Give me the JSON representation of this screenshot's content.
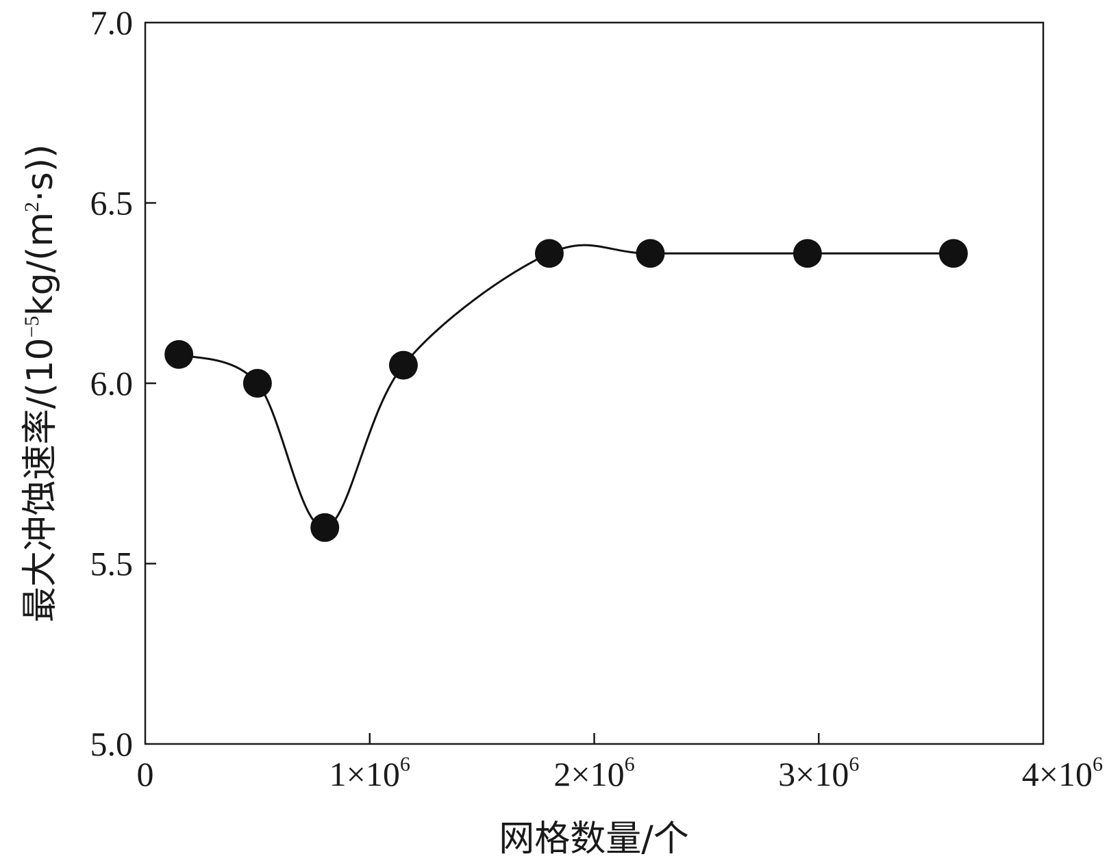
{
  "chart_data": {
    "type": "line",
    "xlabel": "网格数量/个",
    "ylabel": {
      "prefix": "最大冲蚀速率/(10",
      "exp": "−5",
      "middle": "kg/(m",
      "exp2": "2",
      "suffix": "·s))"
    },
    "xlim": [
      0,
      4000000
    ],
    "ylim": [
      5.0,
      7.0
    ],
    "x_ticks": [
      {
        "value": 0,
        "base": "0",
        "exp": ""
      },
      {
        "value": 1000000,
        "base": "1×10",
        "exp": "6"
      },
      {
        "value": 2000000,
        "base": "2×10",
        "exp": "6"
      },
      {
        "value": 3000000,
        "base": "3×10",
        "exp": "6"
      },
      {
        "value": 4000000,
        "base": "4×10",
        "exp": "6"
      }
    ],
    "y_ticks": [
      {
        "value": 5.0,
        "label": "5.0"
      },
      {
        "value": 5.5,
        "label": "5.5"
      },
      {
        "value": 6.0,
        "label": "6.0"
      },
      {
        "value": 6.5,
        "label": "6.5"
      },
      {
        "value": 7.0,
        "label": "7.0"
      }
    ],
    "grid": false,
    "series": [
      {
        "marker": "filled-circle",
        "smooth": true,
        "color": "#111111",
        "x": [
          150000,
          500000,
          800000,
          1150000,
          1800000,
          2250000,
          2950000,
          3600000
        ],
        "y": [
          6.08,
          6.0,
          5.6,
          6.05,
          6.36,
          6.36,
          6.36,
          6.36
        ]
      }
    ]
  }
}
